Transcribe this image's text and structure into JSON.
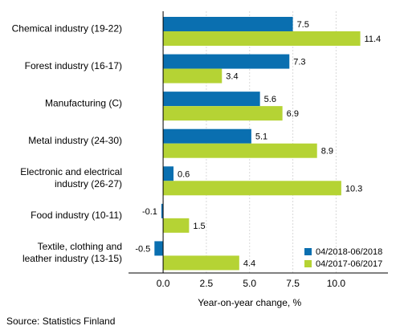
{
  "chart_data": {
    "type": "bar",
    "orientation": "horizontal",
    "categories": [
      "Chemical industry (19-22)",
      "Forest industry (16-17)",
      "Manufacturing (C)",
      "Metal industry (24-30)",
      "Electronic and electrical industry (26-27)",
      "Food industry (10-11)",
      "Textile, clothing and leather industry (13-15)"
    ],
    "category_lines": [
      [
        "Chemical industry (19-22)"
      ],
      [
        "Forest industry (16-17)"
      ],
      [
        "Manufacturing (C)"
      ],
      [
        "Metal industry (24-30)"
      ],
      [
        "Electronic and electrical",
        "industry (26-27)"
      ],
      [
        "Food industry (10-11)"
      ],
      [
        "Textile, clothing and",
        "leather industry (13-15)"
      ]
    ],
    "series": [
      {
        "name": "04/2018-06/2018",
        "color": "#0a6fb0",
        "values": [
          7.5,
          7.3,
          5.6,
          5.1,
          0.6,
          -0.1,
          -0.5
        ]
      },
      {
        "name": "04/2017-06/2017",
        "color": "#b5d334",
        "values": [
          11.4,
          3.4,
          6.9,
          8.9,
          10.3,
          1.5,
          4.4
        ]
      }
    ],
    "xlabel": "Year-on-year change, %",
    "xlim": [
      -2,
      13
    ],
    "xticks": [
      0,
      2.5,
      5,
      7.5,
      10
    ],
    "xtick_labels": [
      "0.0",
      "2.5",
      "5.0",
      "7.5",
      "10.0"
    ],
    "grid": "vertical",
    "legend": "bottom-right",
    "source": "Source: Statistics Finland"
  }
}
